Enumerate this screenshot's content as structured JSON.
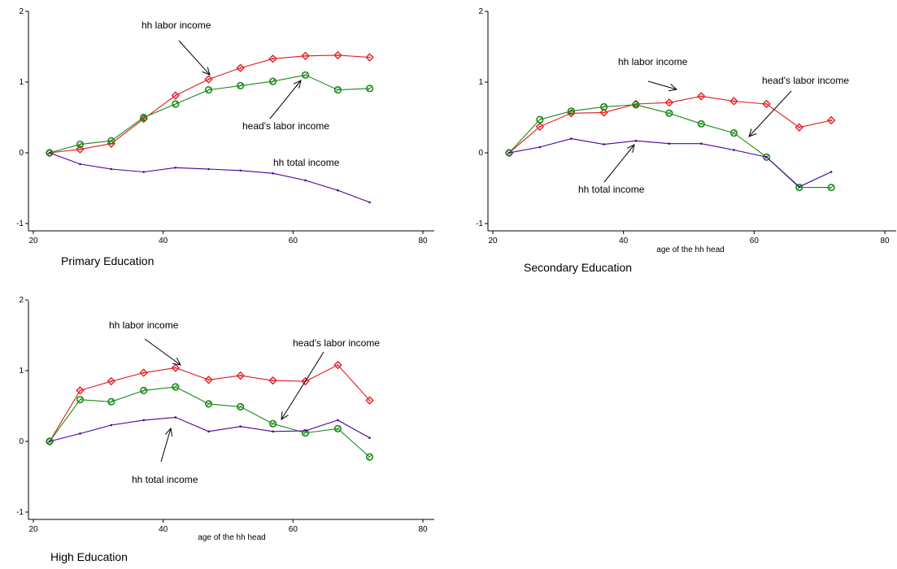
{
  "chart_data": [
    {
      "type": "line",
      "title": "Primary Education",
      "xlabel": "",
      "ylabel": "",
      "xlim": [
        20,
        80
      ],
      "ylim": [
        -1,
        2
      ],
      "xticks": [
        20,
        40,
        60,
        80
      ],
      "yticks": [
        -1,
        0,
        1,
        2
      ],
      "grid": false,
      "series": [
        {
          "key": "hh_labor",
          "color": "#e31a1c",
          "marker": "diamond",
          "x": [
            22.5,
            27.2,
            32.0,
            37.0,
            41.9,
            47.0,
            51.9,
            56.9,
            61.9,
            66.9,
            71.8
          ],
          "y": [
            0.0,
            0.05,
            0.13,
            0.48,
            0.81,
            1.04,
            1.2,
            1.33,
            1.37,
            1.38,
            1.35
          ]
        },
        {
          "key": "head_labor",
          "color": "#1a8a1a",
          "marker": "circle",
          "x": [
            22.5,
            27.2,
            32.0,
            37.0,
            41.9,
            47.0,
            51.9,
            56.9,
            61.9,
            66.9,
            71.8
          ],
          "y": [
            0.0,
            0.12,
            0.17,
            0.5,
            0.69,
            0.89,
            0.95,
            1.01,
            1.1,
            0.89,
            0.91
          ]
        },
        {
          "key": "hh_total",
          "color": "#4b0096",
          "marker": "dot",
          "x": [
            22.5,
            27.2,
            32.0,
            37.0,
            41.9,
            47.0,
            51.9,
            56.9,
            61.9,
            66.9,
            71.8
          ],
          "y": [
            0.0,
            -0.16,
            -0.23,
            -0.27,
            -0.21,
            -0.23,
            -0.25,
            -0.29,
            -0.39,
            -0.53,
            -0.7
          ]
        }
      ],
      "annotations": [
        {
          "text": "hh labor income",
          "x": 29.0,
          "y": 1.85
        },
        {
          "text": "head's labor income",
          "x": 52.5,
          "y": 0.37
        },
        {
          "text": "hh total income",
          "x": 56.5,
          "y": -0.14
        }
      ]
    },
    {
      "type": "line",
      "title": "Secondary Education",
      "xlabel": "age of the hh head",
      "ylabel": "",
      "xlim": [
        20,
        80
      ],
      "ylim": [
        -1,
        2
      ],
      "xticks": [
        20,
        40,
        60,
        80
      ],
      "yticks": [
        -1,
        0,
        1,
        2
      ],
      "grid": false,
      "series": [
        {
          "key": "hh_labor",
          "color": "#e31a1c",
          "marker": "diamond",
          "x": [
            22.5,
            27.2,
            32.0,
            37.0,
            41.9,
            47.0,
            51.9,
            56.9,
            61.9,
            66.9,
            71.8
          ],
          "y": [
            0.0,
            0.37,
            0.56,
            0.57,
            0.69,
            0.71,
            0.8,
            0.73,
            0.69,
            0.36,
            0.46
          ]
        },
        {
          "key": "head_labor",
          "color": "#1a8a1a",
          "marker": "circle",
          "x": [
            22.5,
            27.2,
            32.0,
            37.0,
            41.9,
            47.0,
            51.9,
            56.9,
            61.9,
            66.9,
            71.8
          ],
          "y": [
            0.0,
            0.47,
            0.59,
            0.65,
            0.68,
            0.56,
            0.41,
            0.28,
            -0.06,
            -0.49,
            -0.49
          ]
        },
        {
          "key": "hh_total",
          "color": "#4b0096",
          "marker": "dot",
          "x": [
            22.5,
            27.2,
            32.0,
            37.0,
            41.9,
            47.0,
            51.9,
            56.9,
            61.9,
            66.9,
            71.8
          ],
          "y": [
            0.0,
            0.08,
            0.2,
            0.12,
            0.17,
            0.13,
            0.13,
            0.04,
            -0.06,
            -0.48,
            -0.27
          ]
        }
      ],
      "annotations": [
        {
          "text": "hh labor income",
          "x": 47.0,
          "y": 1.28
        },
        {
          "text": "head's labor income",
          "x": 71.5,
          "y": 1.01
        },
        {
          "text": "hh total income",
          "x": 33.0,
          "y": -0.53
        }
      ]
    },
    {
      "type": "line",
      "title": "High Education",
      "xlabel": "age of the hh head",
      "ylabel": "",
      "xlim": [
        20,
        80
      ],
      "ylim": [
        -1,
        2
      ],
      "xticks": [
        20,
        40,
        60,
        80
      ],
      "yticks": [
        -1,
        0,
        1,
        2
      ],
      "grid": false,
      "series": [
        {
          "key": "hh_labor",
          "color": "#e31a1c",
          "marker": "diamond",
          "x": [
            22.5,
            27.2,
            32.0,
            37.0,
            41.9,
            47.0,
            51.9,
            56.9,
            61.9,
            66.9,
            71.8
          ],
          "y": [
            0.0,
            0.72,
            0.85,
            0.97,
            1.04,
            0.87,
            0.93,
            0.86,
            0.85,
            1.08,
            0.58
          ]
        },
        {
          "key": "head_labor",
          "color": "#1a8a1a",
          "marker": "circle",
          "x": [
            22.5,
            27.2,
            32.0,
            37.0,
            41.9,
            47.0,
            51.9,
            56.9,
            61.9,
            66.9,
            71.8
          ],
          "y": [
            0.0,
            0.59,
            0.56,
            0.72,
            0.77,
            0.53,
            0.49,
            0.25,
            0.12,
            0.18,
            -0.22
          ]
        },
        {
          "key": "hh_total",
          "color": "#4b0096",
          "marker": "dot",
          "x": [
            22.5,
            27.2,
            32.0,
            37.0,
            41.9,
            47.0,
            51.9,
            56.9,
            61.9,
            66.9,
            71.8
          ],
          "y": [
            0.0,
            0.11,
            0.23,
            0.3,
            0.34,
            0.14,
            0.21,
            0.14,
            0.15,
            0.3,
            0.05
          ]
        }
      ],
      "annotations": [
        {
          "text": "hh labor income",
          "x": 38.0,
          "y": 1.65
        },
        {
          "text": "head's labor income",
          "x": 72.0,
          "y": 1.38
        },
        {
          "text": "hh total income",
          "x": 41.0,
          "y": -0.55
        }
      ]
    }
  ]
}
